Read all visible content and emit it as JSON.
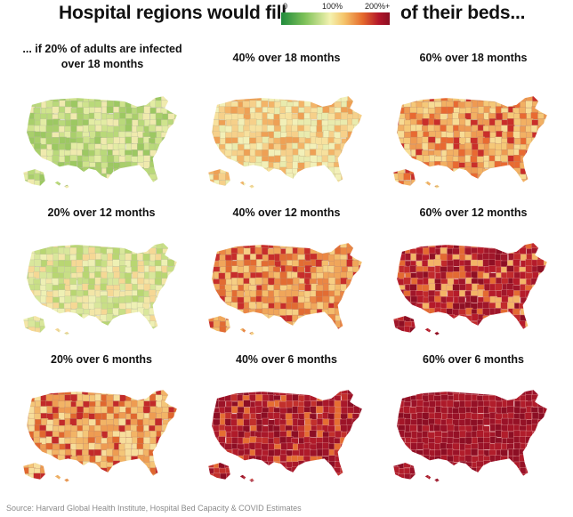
{
  "title": {
    "left": "Hospital regions would fill",
    "right": "of their beds..."
  },
  "legend": {
    "labels": [
      "0",
      "100%",
      "200%+"
    ],
    "colors": [
      "#1f8a3b",
      "#7fc25a",
      "#f4f2b0",
      "#f5c46a",
      "#e56a2c",
      "#b3162a",
      "#8b0e22"
    ]
  },
  "panels": [
    {
      "label_line1": "... if 20% of adults are infected",
      "label_line2": "over 18 months",
      "infected_pct": 20,
      "months": 18,
      "palette": [
        "#b9d97a",
        "#cfe38d",
        "#e3eca4",
        "#a9cf6b",
        "#f0eaae",
        "#9cc862"
      ],
      "outline": "#b6b89a"
    },
    {
      "label": "40% over 18 months",
      "infected_pct": 40,
      "months": 18,
      "palette": [
        "#f6d08a",
        "#f3b468",
        "#e9ebae",
        "#f7e19e",
        "#eea055",
        "#f2f0b8"
      ],
      "outline": "#c9b98a"
    },
    {
      "label": "60% over 18 months",
      "infected_pct": 60,
      "months": 18,
      "palette": [
        "#ee9a52",
        "#e86a32",
        "#f5c878",
        "#f7dc95",
        "#c92e2a",
        "#f2b063"
      ],
      "outline": "#c08a6a"
    },
    {
      "label": "20% over 12 months",
      "infected_pct": 20,
      "months": 12,
      "palette": [
        "#d9e79c",
        "#c8df86",
        "#eef0b4",
        "#f6d895",
        "#b8d672",
        "#f3e6a7"
      ],
      "outline": "#bcbf9c"
    },
    {
      "label": "40% over 12 months",
      "infected_pct": 40,
      "months": 12,
      "palette": [
        "#f0a65a",
        "#e26c33",
        "#f6cf84",
        "#c72d2b",
        "#f4bd6c",
        "#eb8744"
      ],
      "outline": "#c0866a"
    },
    {
      "label": "60% over 12 months",
      "infected_pct": 60,
      "months": 12,
      "palette": [
        "#a0162a",
        "#8e0f24",
        "#c12a2c",
        "#e36a32",
        "#f3b467",
        "#b51b2a"
      ],
      "outline": "#d98a8a"
    },
    {
      "label": "20% over 6 months",
      "infected_pct": 20,
      "months": 6,
      "palette": [
        "#f4c678",
        "#ee9c52",
        "#f7de9c",
        "#e0672f",
        "#c22a2a",
        "#f2b466"
      ],
      "outline": "#c38c6c"
    },
    {
      "label": "40% over 6 months",
      "infected_pct": 40,
      "months": 6,
      "palette": [
        "#9c1328",
        "#a9182a",
        "#8c0e24",
        "#c2302c",
        "#e56e32",
        "#b01b2a"
      ],
      "outline": "#e29a9a"
    },
    {
      "label": "60% over 6 months",
      "infected_pct": 60,
      "months": 6,
      "palette": [
        "#9a1228",
        "#a41628",
        "#8c0e24",
        "#b11d2b",
        "#951126",
        "#ad1a2a"
      ],
      "outline": "#e6a0a0"
    }
  ],
  "source": "Source: Harvard Global Health Institute, Hospital Bed Capacity & COVID Estimates"
}
